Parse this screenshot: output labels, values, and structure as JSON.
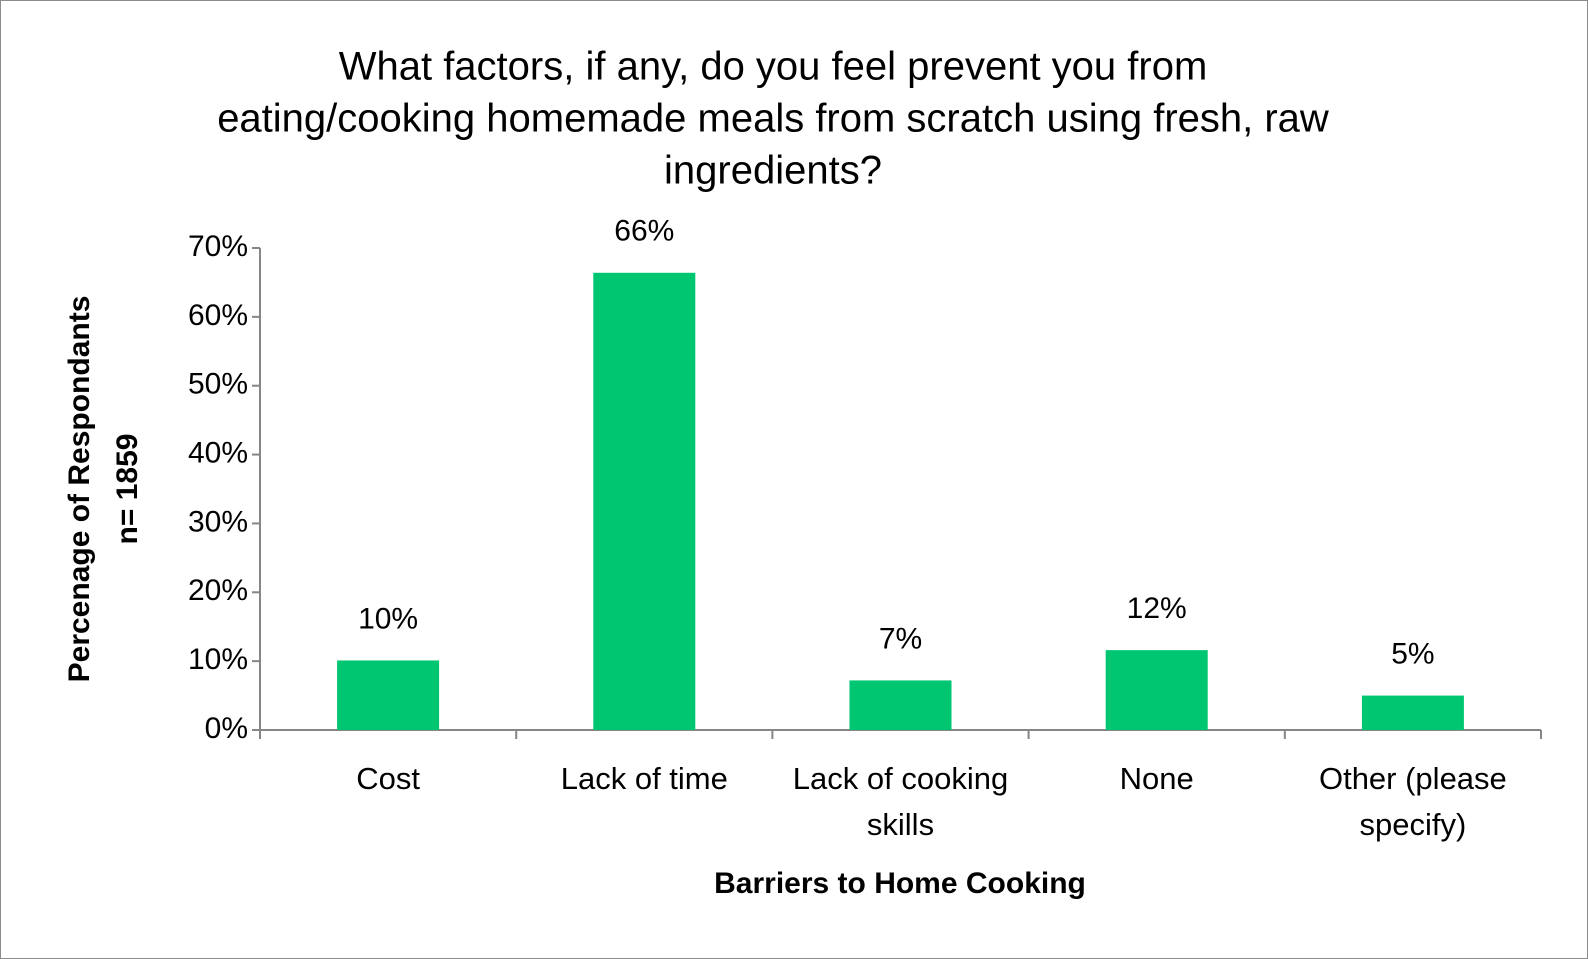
{
  "chart_data": {
    "type": "bar",
    "title": [
      "What factors, if any, do you feel prevent you from",
      "eating/cooking homemade meals from scratch using fresh, raw",
      "ingredients?"
    ],
    "y_label": [
      "Percenage of Respondants",
      "n= 1859"
    ],
    "x_label": "Barriers to Home Cooking",
    "categories": [
      "Cost",
      "Lack of time",
      "Lack of cooking skills",
      "None",
      "Other (please specify)"
    ],
    "values": [
      10.1,
      66.4,
      7.2,
      11.6,
      5
    ],
    "value_labels": [
      "10%",
      "66%",
      "7%",
      "12%",
      "5%"
    ],
    "color": "#00c671",
    "ylim": [
      0,
      70
    ],
    "yticks": [
      {
        "value": 0,
        "label": "0%"
      },
      {
        "value": 10,
        "label": "10%"
      },
      {
        "value": 20,
        "label": "20%"
      },
      {
        "value": 30,
        "label": "30%"
      },
      {
        "value": 40,
        "label": "40%"
      },
      {
        "value": 50,
        "label": "50%"
      },
      {
        "value": 60,
        "label": "60%"
      },
      {
        "value": 70,
        "label": "70%"
      }
    ],
    "grid": false
  }
}
